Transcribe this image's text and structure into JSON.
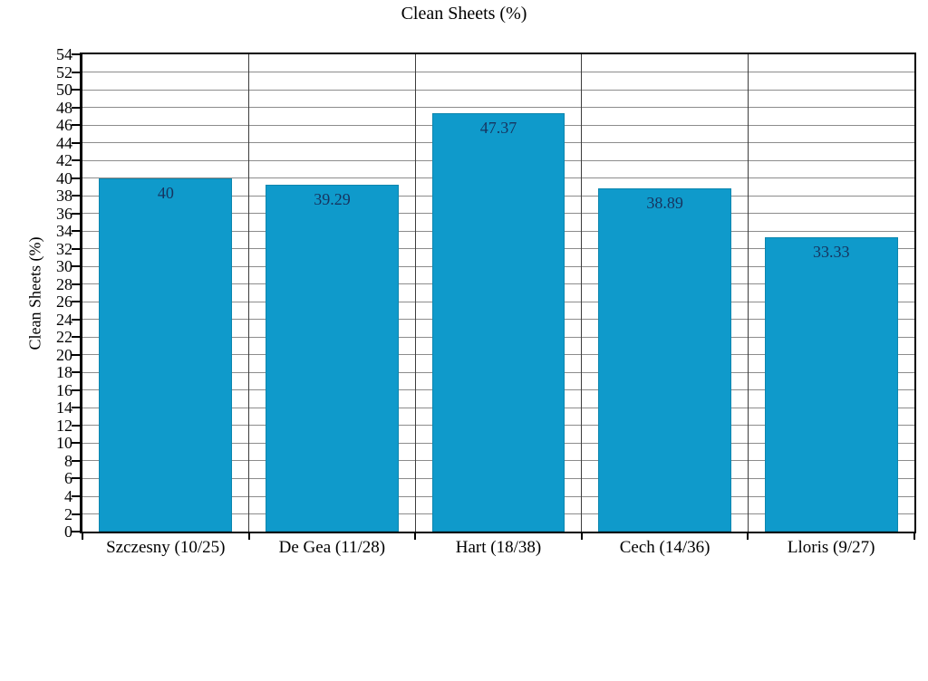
{
  "chart_data": {
    "type": "bar",
    "title": "Clean Sheets (%)",
    "xlabel": "",
    "ylabel": "Clean Sheets (%)",
    "categories": [
      "Szczesny (10/25)",
      "De Gea (11/28)",
      "Hart (18/38)",
      "Cech (14/36)",
      "Lloris (9/27)"
    ],
    "values": [
      40,
      39.29,
      47.37,
      38.89,
      33.33
    ],
    "value_labels": [
      "40",
      "39.29",
      "47.37",
      "38.89",
      "33.33"
    ],
    "ylim": [
      0,
      54
    ],
    "ytick_step": 2,
    "grid": true,
    "legend": false,
    "colors": {
      "bar_fill": "#0f9acb",
      "bar_edge": "#0c86ae",
      "value_label": "#17345f",
      "gridline": "#8c8c8c",
      "category_separator": "#3d3d3d",
      "axis": "#000000",
      "background": "#ffffff",
      "text": "#000000"
    }
  }
}
